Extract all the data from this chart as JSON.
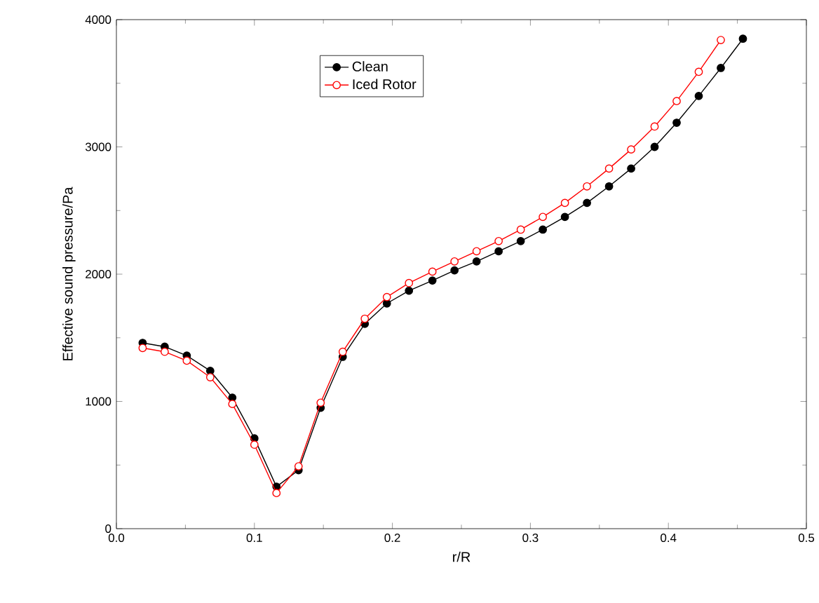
{
  "chart_data": {
    "type": "line",
    "xlabel": "r/R",
    "ylabel": "Effective sound pressure/Pa",
    "x": [
      0.019,
      0.035,
      0.051,
      0.068,
      0.084,
      0.1,
      0.116,
      0.132,
      0.148,
      0.164,
      0.18,
      0.196,
      0.212,
      0.229,
      0.245,
      0.261,
      0.277,
      0.293,
      0.309,
      0.325,
      0.341,
      0.357,
      0.373,
      0.39,
      0.406,
      0.422,
      0.438,
      0.454
    ],
    "series": [
      {
        "name": "Clean",
        "color": "#000000",
        "values": [
          1460,
          1430,
          1360,
          1240,
          1030,
          710,
          330,
          460,
          950,
          1350,
          1610,
          1770,
          1870,
          1950,
          2030,
          2100,
          2180,
          2260,
          2350,
          2450,
          2560,
          2690,
          2830,
          3000,
          3190,
          3400,
          3620,
          3850
        ]
      },
      {
        "name": "Iced Rotor",
        "color": "#ff0000",
        "values": [
          1420,
          1390,
          1320,
          1190,
          980,
          660,
          280,
          490,
          990,
          1390,
          1650,
          1820,
          1930,
          2020,
          2100,
          2180,
          2260,
          2350,
          2450,
          2560,
          2690,
          2830,
          2980,
          3160,
          3360,
          3590,
          3840,
          null
        ]
      }
    ],
    "xlim": [
      0,
      0.5
    ],
    "ylim": [
      0,
      4000
    ],
    "xticks": [
      {
        "value": 0,
        "label": "0.0"
      },
      0.1,
      0.2,
      0.3,
      0.4,
      0.5
    ],
    "yticks": [
      0,
      1000,
      2000,
      3000,
      4000
    ],
    "legend": "top",
    "marker": "circle",
    "line_style": "solid",
    "grid": false
  }
}
